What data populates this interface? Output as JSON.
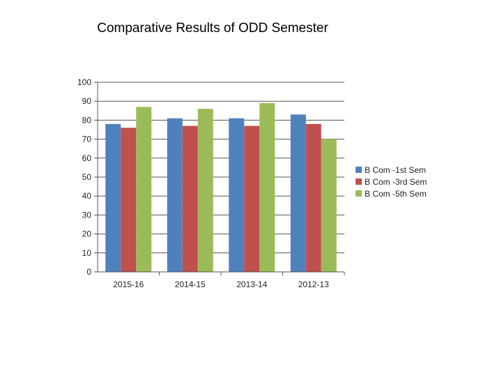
{
  "chart_data": {
    "type": "bar",
    "title": "Comparative Results of ODD Semester",
    "categories": [
      "2015-16",
      "2014-15",
      "2013-14",
      "2012-13"
    ],
    "series": [
      {
        "name": "B Com -1st Sem",
        "color": "#4F81BD",
        "values": [
          78,
          81,
          81,
          83
        ]
      },
      {
        "name": "B Com -3rd Sem",
        "color": "#C0504D",
        "values": [
          76,
          77,
          77,
          78
        ]
      },
      {
        "name": "B Com -5th Sem",
        "color": "#9BBB59",
        "values": [
          87,
          86,
          89,
          70
        ]
      }
    ],
    "ylim": [
      0,
      100
    ],
    "yticks": [
      0,
      10,
      20,
      30,
      40,
      50,
      60,
      70,
      80,
      90,
      100
    ],
    "grid": true,
    "legend_position": "right"
  }
}
